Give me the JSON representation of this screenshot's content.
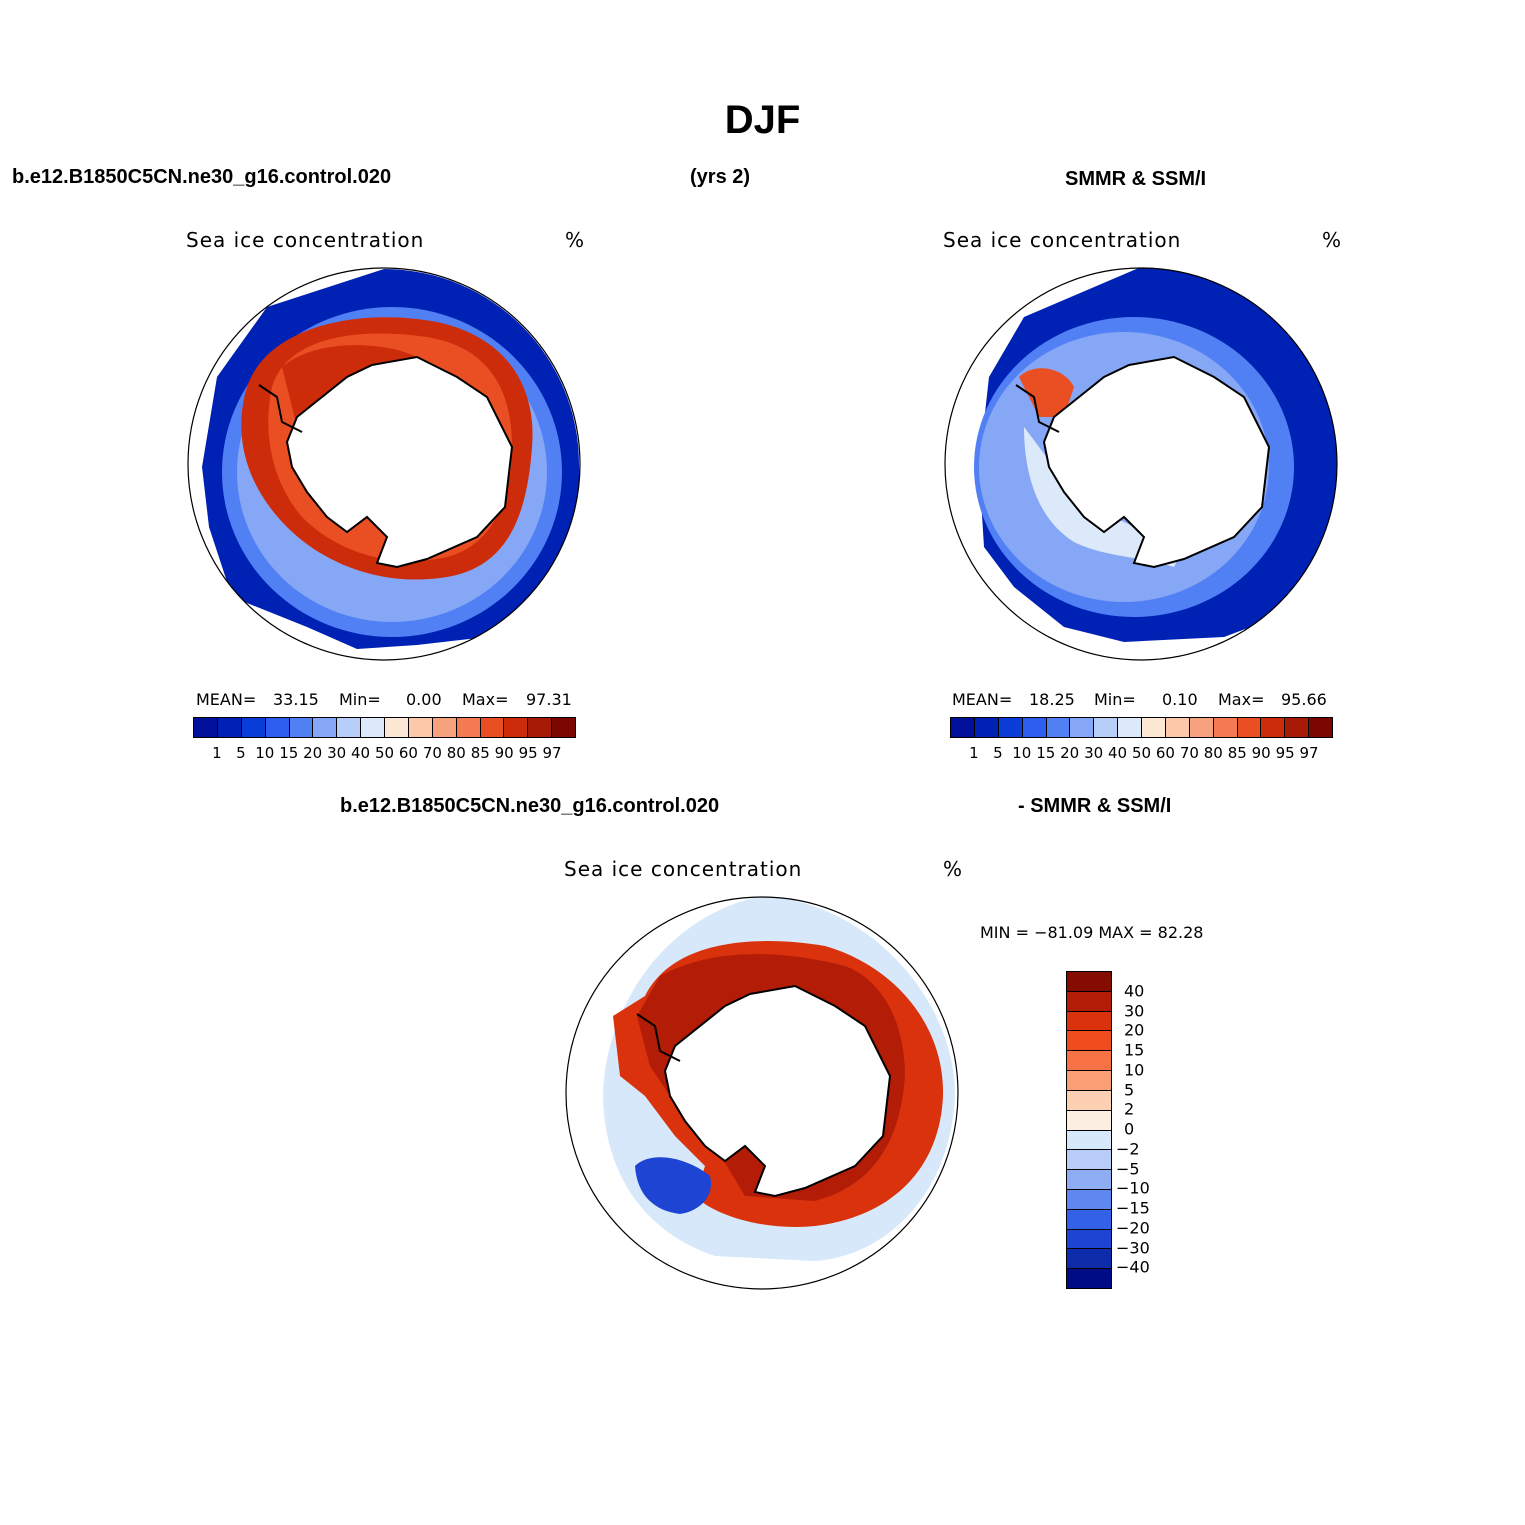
{
  "title": "DJF",
  "header": {
    "case": "b.e12.B1850C5CN.ne30_g16.control.020",
    "years": "(yrs 2)",
    "obs": "SMMR & SSM/I"
  },
  "panels": {
    "model": {
      "subtitle": "Sea ice concentration",
      "units": "%",
      "mean_label": "MEAN=",
      "mean": "33.15",
      "min_label": "Min=",
      "min": "0.00",
      "max_label": "Max=",
      "max": "97.31"
    },
    "obs": {
      "subtitle": "Sea ice concentration",
      "units": "%",
      "mean_label": "MEAN=",
      "mean": "18.25",
      "min_label": "Min=",
      "min": "0.10",
      "max_label": "Max=",
      "max": "95.66"
    },
    "diff": {
      "title_left": "b.e12.B1850C5CN.ne30_g16.control.020",
      "title_right": "- SMMR & SSM/I",
      "subtitle": "Sea ice concentration",
      "units": "%",
      "minmax": "MIN = −81.09 MAX =   82.28"
    }
  },
  "colorbar_abs": {
    "labels": [
      "1",
      "5",
      "10",
      "15",
      "20",
      "30",
      "40",
      "50",
      "60",
      "70",
      "80",
      "85",
      "90",
      "95",
      "97"
    ],
    "colors": [
      "#00109a",
      "#0022b4",
      "#0b3ed8",
      "#2d5ef0",
      "#5180f4",
      "#86a7f6",
      "#b7cef8",
      "#dce9fb",
      "#fde8d6",
      "#fbc8aa",
      "#f7a27e",
      "#f47a52",
      "#ea4f24",
      "#cc2c0a",
      "#a71a05",
      "#7a0800"
    ]
  },
  "colorbar_diff": {
    "labels": [
      "40",
      "30",
      "20",
      "15",
      "10",
      "5",
      "2",
      "0",
      "−2",
      "−5",
      "−10",
      "−15",
      "−20",
      "−30",
      "−40"
    ],
    "colors": [
      "#840c00",
      "#b31c06",
      "#d9320d",
      "#ef4d1e",
      "#f77345",
      "#fa9e76",
      "#fdd0b4",
      "#fdeee2",
      "#d6e8fa",
      "#b7cdf7",
      "#8eadf3",
      "#5e87ef",
      "#3362e9",
      "#1d44d2",
      "#0e2ba9",
      "#000c85"
    ]
  },
  "colors": {
    "land": "#ffffff",
    "coast": "#000000",
    "ring_model_outer": "#0022b4",
    "ring_model_mid": "#5180f4",
    "ring_model_inner": "#cc2c0a",
    "ring_obs_outer": "#0022b4",
    "ring_obs_mid": "#86a7f6",
    "ring_obs_inner": "#dce9fb",
    "ring_diff_outer": "#d6e8fa",
    "ring_diff_inner": "#b31c06"
  }
}
